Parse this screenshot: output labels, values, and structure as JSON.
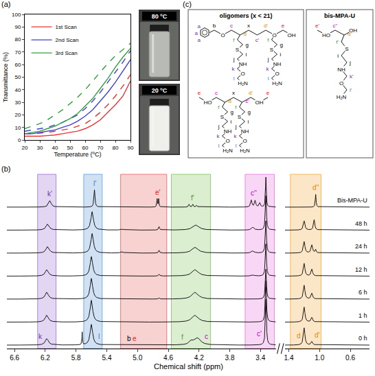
{
  "chart_data": [
    {
      "type": "line",
      "xlabel": "Temperature (ºC)",
      "ylabel": "Transmittance (%)",
      "x": [
        20,
        25,
        30,
        35,
        40,
        45,
        50,
        55,
        60,
        65,
        70,
        75,
        80,
        85,
        90
      ],
      "xlim": [
        20,
        90
      ],
      "xticks": [
        20,
        30,
        40,
        50,
        60,
        70,
        80,
        90
      ],
      "ylim": [
        0,
        100
      ],
      "yticks": [
        0,
        10,
        20,
        30,
        40,
        50,
        60,
        70,
        80,
        90,
        100
      ],
      "grid": false,
      "legend": "top-left",
      "series": [
        {
          "name": "1st Scan",
          "color": "#e8312f",
          "line_style": "solid",
          "values": [
            3,
            3,
            3,
            3.5,
            4,
            5,
            6,
            7,
            9,
            12,
            16,
            22,
            28,
            35,
            47
          ]
        },
        {
          "color": "#e8312f",
          "line_style": "dashed",
          "values": [
            5,
            5,
            5.5,
            6,
            7,
            8,
            9,
            11,
            13,
            17,
            22,
            28,
            35,
            43,
            52
          ]
        },
        {
          "name": "2nd Scan",
          "color": "#3f3fd0",
          "line_style": "solid",
          "values": [
            5,
            5,
            6,
            7,
            8,
            10,
            12,
            15,
            19,
            24,
            31,
            38,
            46,
            55,
            64
          ]
        },
        {
          "color": "#3f3fd0",
          "line_style": "dashed",
          "values": [
            7,
            8,
            9,
            10,
            12,
            14,
            17,
            20,
            25,
            31,
            38,
            46,
            54,
            62,
            71
          ]
        },
        {
          "name": "3rd Scan",
          "color": "#2e9e3e",
          "line_style": "solid",
          "values": [
            5,
            6,
            7,
            9,
            11,
            14,
            17,
            21,
            27,
            33,
            41,
            49,
            58,
            66,
            73
          ]
        },
        {
          "color": "#2e9e3e",
          "line_style": "dashed",
          "values": [
            9,
            11,
            13,
            16,
            20,
            24,
            29,
            34,
            40,
            47,
            54,
            61,
            67,
            72,
            77
          ]
        }
      ]
    },
    {
      "type": "spectra",
      "xlabel": "Chemical shift (ppm)",
      "xlim": [
        6.7,
        3.2
      ],
      "xticks": [
        6.6,
        6.2,
        5.8,
        5.4,
        {
          "value": 5,
          "label": "5.0"
        },
        4.6,
        4.2,
        3.8,
        3.4
      ],
      "x2lim": [
        1.45,
        0.35
      ],
      "x2ticks": [
        1.4,
        {
          "value": 1,
          "label": "1.0"
        },
        0.6
      ],
      "tick_labels": "x",
      "series": [
        {
          "name": "Bis-MPA-U",
          "peaks": [
            [
              6.14,
              0.28,
              0.02
            ],
            [
              5.56,
              0.75,
              0.008
            ],
            [
              4.745,
              0.35,
              0.005
            ],
            [
              4.725,
              0.35,
              0.005
            ],
            [
              4.33,
              0.12,
              0.008
            ],
            [
              4.28,
              0.12,
              0.008
            ],
            [
              4.23,
              0.08,
              0.008
            ],
            [
              3.52,
              0.3,
              0.01
            ],
            [
              3.47,
              0.28,
              0.01
            ],
            [
              3.41,
              0.18,
              0.01
            ],
            [
              3.33,
              1.3,
              0.006
            ],
            [
              1.05,
              0.55,
              0.006
            ]
          ]
        },
        {
          "name": "48 h",
          "peaks": [
            [
              6.17,
              0.26,
              0.025
            ],
            [
              5.59,
              0.8,
              0.02
            ],
            [
              5.2,
              0.04,
              0.02
            ],
            [
              4.72,
              0.15,
              0.008
            ],
            [
              4.24,
              0.22,
              0.05
            ],
            [
              3.5,
              0.12,
              0.02
            ],
            [
              3.33,
              1.5,
              0.008
            ],
            [
              1.2,
              0.4,
              0.012
            ],
            [
              1.07,
              0.45,
              0.01
            ]
          ]
        },
        {
          "name": "24 h",
          "peaks": [
            [
              6.17,
              0.28,
              0.025
            ],
            [
              5.59,
              0.85,
              0.02
            ],
            [
              5.2,
              0.06,
              0.02
            ],
            [
              4.72,
              0.12,
              0.008
            ],
            [
              4.25,
              0.25,
              0.05
            ],
            [
              3.5,
              0.1,
              0.02
            ],
            [
              3.33,
              1.4,
              0.008
            ],
            [
              1.2,
              0.5,
              0.012
            ],
            [
              1.1,
              0.35,
              0.012
            ],
            [
              1.05,
              0.15,
              0.008
            ]
          ]
        },
        {
          "name": "12 h",
          "peaks": [
            [
              6.18,
              0.28,
              0.025
            ],
            [
              5.6,
              0.85,
              0.02
            ],
            [
              4.72,
              0.08,
              0.008
            ],
            [
              4.25,
              0.28,
              0.05
            ],
            [
              3.5,
              0.05,
              0.02
            ],
            [
              3.33,
              1.4,
              0.008
            ],
            [
              1.2,
              0.55,
              0.012
            ],
            [
              1.1,
              0.3,
              0.012
            ]
          ]
        },
        {
          "name": "6 h",
          "peaks": [
            [
              6.18,
              0.3,
              0.025
            ],
            [
              5.6,
              0.9,
              0.02
            ],
            [
              4.72,
              0.05,
              0.008
            ],
            [
              4.25,
              0.3,
              0.05
            ],
            [
              3.33,
              1.3,
              0.008
            ],
            [
              1.2,
              0.6,
              0.012
            ],
            [
              1.1,
              0.25,
              0.012
            ]
          ]
        },
        {
          "name": "1 h",
          "peaks": [
            [
              6.18,
              0.3,
              0.025
            ],
            [
              5.6,
              0.95,
              0.02
            ],
            [
              4.25,
              0.3,
              0.05
            ],
            [
              3.33,
              1.8,
              0.008
            ],
            [
              1.2,
              0.65,
              0.012
            ],
            [
              1.1,
              0.2,
              0.012
            ]
          ]
        },
        {
          "name": "0 h",
          "peaks": [
            [
              6.18,
              0.28,
              0.025
            ],
            [
              5.72,
              0.55,
              0.004
            ],
            [
              5.6,
              0.9,
              0.02
            ],
            [
              4.3,
              0.15,
              0.03
            ],
            [
              4.22,
              0.3,
              0.05
            ],
            [
              3.33,
              2.0,
              0.008
            ],
            [
              1.2,
              0.75,
              0.012
            ],
            [
              1.1,
              0.15,
              0.012
            ]
          ]
        }
      ],
      "bands": [
        {
          "from": 6.3,
          "to": 6.06,
          "color": "#a57fd6"
        },
        {
          "from": 5.7,
          "to": 5.46,
          "color": "#6fa3dd"
        },
        {
          "from": 5.22,
          "to": 4.62,
          "color": "#e87070"
        },
        {
          "from": 4.56,
          "to": 4.05,
          "color": "#8fca6a"
        },
        {
          "from": 3.6,
          "to": 3.22,
          "color": "#e880e0"
        },
        {
          "from": 1.38,
          "to": 0.98,
          "color": "#f2b550"
        }
      ],
      "annotations": [
        {
          "text": "k'",
          "color": "#7030a0",
          "x": 6.14,
          "spectrum": "Bis-MPA-U"
        },
        {
          "text": "l'",
          "color": "#3a78c4",
          "x": 5.56,
          "spectrum": "Bis-MPA-U"
        },
        {
          "text": "e'",
          "color": "#e02020",
          "x": 4.735,
          "spectrum": "Bis-MPA-U"
        },
        {
          "text": "f'",
          "color": "#4e9a2a",
          "x": 4.28,
          "spectrum": "Bis-MPA-U"
        },
        {
          "text": "c''",
          "color": "#c000c0",
          "x": 3.49,
          "spectrum": "Bis-MPA-U"
        },
        {
          "text": "d''",
          "color": "#e08a00",
          "x": 1.05,
          "spectrum": "Bis-MPA-U"
        },
        {
          "text": "k",
          "color": "#7030a0",
          "x": 6.26,
          "spectrum": "0 h"
        },
        {
          "text": "l",
          "color": "#3a78c4",
          "x": 5.5,
          "spectrum": "0 h"
        },
        {
          "text": "b",
          "color": "#000000",
          "x": 5.11,
          "spectrum": "0 h"
        },
        {
          "text": "e",
          "color": "#e02020",
          "x": 5.04,
          "spectrum": "0 h"
        },
        {
          "text": "f",
          "color": "#4e9a2a",
          "x": 4.42,
          "spectrum": "0 h"
        },
        {
          "text": "c",
          "color": "#c000c0",
          "x": 4.1,
          "spectrum": "0 h"
        },
        {
          "text": "c'",
          "color": "#c000c0",
          "x": 3.42,
          "spectrum": "0 h"
        },
        {
          "text": "d",
          "color": "#e08a00",
          "x": 1.27,
          "spectrum": "0 h"
        },
        {
          "text": "d'",
          "color": "#e08a00",
          "x": 1.03,
          "spectrum": "0 h"
        }
      ]
    }
  ],
  "panels": [
    "(a)",
    "(b)",
    "(c)"
  ],
  "photos": [
    {
      "label": "80 ºC"
    },
    {
      "label": "20 ºC"
    }
  ],
  "structures": [
    {
      "title": "oligomers (x < 21)",
      "molecules": [
        {
          "ring": [
            {
              "text": "a",
              "color": "#7030a0"
            },
            {
              "text": "a",
              "color": "#7030a0"
            },
            {
              "text": "a",
              "color": "#7030a0"
            }
          ],
          "core": [
            "b",
            "O",
            {
              "text": "c",
              "color": "#c000c0"
            },
            {
              "text": "d",
              "color": "#e08a00"
            },
            "x",
            {
              "text": "c'",
              "color": "#c000c0"
            },
            {
              "text": "d'",
              "color": "#e08a00"
            },
            "O",
            {
              "text": "e",
              "color": "#e02020"
            },
            "OH"
          ],
          "arms": [
            [
              {
                "text": "f",
                "color": "#4e9a2a"
              },
              "g",
              "S",
              "i",
              "j",
              "NH",
              {
                "text": "k",
                "color": "#7030a0"
              },
              "O",
              {
                "text": "l",
                "color": "#3a78c4"
              },
              "H₂N"
            ],
            [
              {
                "text": "f",
                "color": "#4e9a2a"
              },
              "g",
              "S",
              "i",
              "j",
              "NH",
              {
                "text": "k",
                "color": "#7030a0"
              },
              "O",
              {
                "text": "l",
                "color": "#3a78c4"
              },
              "H₂N"
            ]
          ]
        },
        {
          "core": [
            {
              "text": "e",
              "color": "#e02020"
            },
            "HO",
            {
              "text": "c",
              "color": "#c000c0"
            },
            {
              "text": "d",
              "color": "#e08a00"
            },
            "x",
            {
              "text": "c'",
              "color": "#c000c0"
            },
            {
              "text": "d'",
              "color": "#e08a00"
            },
            "OH",
            {
              "text": "e",
              "color": "#e02020"
            }
          ],
          "arms": [
            [
              {
                "text": "f",
                "color": "#4e9a2a"
              },
              "g",
              "S",
              "i",
              "j",
              "NH",
              {
                "text": "k",
                "color": "#7030a0"
              },
              "O",
              {
                "text": "l",
                "color": "#3a78c4"
              },
              "H₂N"
            ],
            [
              {
                "text": "f",
                "color": "#4e9a2a"
              },
              "g",
              "S",
              "i",
              "j",
              "NH",
              {
                "text": "k",
                "color": "#7030a0"
              },
              "O",
              {
                "text": "l",
                "color": "#3a78c4"
              },
              "H₂N"
            ]
          ]
        }
      ]
    },
    {
      "title": "bis-MPA-U",
      "molecules": [
        {
          "core": [
            {
              "text": "e'",
              "color": "#e02020"
            },
            "HO",
            {
              "text": "c''",
              "color": "#c000c0"
            },
            {
              "text": "d''",
              "color": "#e08a00"
            },
            "OH"
          ],
          "arms": [
            [
              {
                "text": "f'",
                "color": "#4e9a2a"
              },
              "S",
              "i",
              "j",
              "NH",
              {
                "text": "k'",
                "color": "#7030a0"
              },
              "O",
              {
                "text": "l'",
                "color": "#3a78c4"
              },
              "H₂N"
            ]
          ]
        }
      ]
    }
  ]
}
